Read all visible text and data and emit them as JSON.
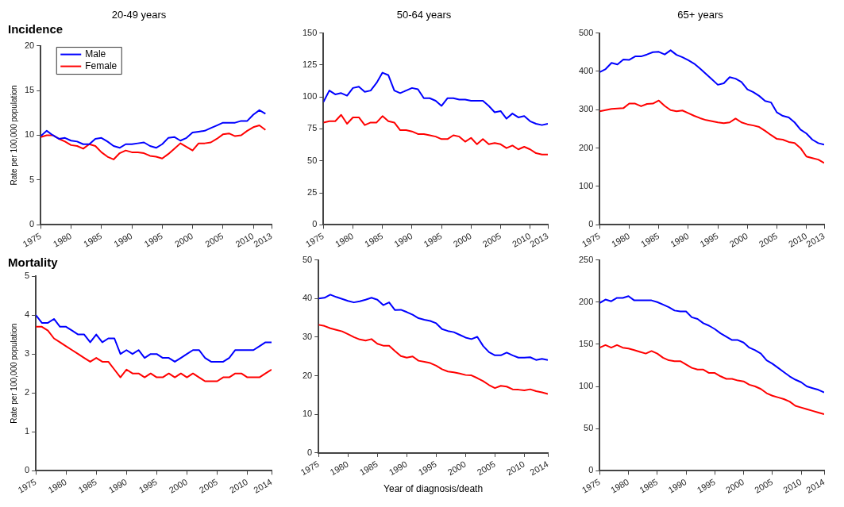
{
  "chart_data": [
    {
      "type": "line",
      "title": "20-49 years",
      "annotations": [
        "Incidence"
      ],
      "ylabel": "Rate per 100,000 population",
      "x": [
        1975,
        1976,
        1977,
        1978,
        1979,
        1980,
        1981,
        1982,
        1983,
        1984,
        1985,
        1986,
        1987,
        1988,
        1989,
        1990,
        1991,
        1992,
        1993,
        1994,
        1995,
        1996,
        1997,
        1998,
        1999,
        2000,
        2001,
        2002,
        2003,
        2004,
        2005,
        2006,
        2007,
        2008,
        2009,
        2010,
        2011,
        2012
      ],
      "xlim": [
        1975,
        2013
      ],
      "xticks": [
        1975,
        1980,
        1985,
        1990,
        1995,
        2000,
        2005,
        2010,
        2013
      ],
      "ylim": [
        0,
        20
      ],
      "yticks": [
        0,
        5,
        10,
        15,
        20
      ],
      "grid": false,
      "legend": "top left",
      "marker": "none",
      "line_style": "solid",
      "series": [
        {
          "name": "Male",
          "color": "#0000ff",
          "values": [
            9.9,
            10.5,
            10.0,
            9.6,
            9.7,
            9.4,
            9.3,
            9.0,
            9.0,
            9.6,
            9.7,
            9.3,
            8.8,
            8.6,
            9.0,
            9.0,
            9.1,
            9.2,
            8.8,
            8.6,
            9.0,
            9.7,
            9.8,
            9.4,
            9.7,
            10.3,
            10.4,
            10.5,
            10.8,
            11.1,
            11.4,
            11.4,
            11.4,
            11.6,
            11.6,
            12.3,
            12.8,
            12.4
          ]
        },
        {
          "name": "Female",
          "color": "#ff0000",
          "values": [
            9.8,
            10.0,
            10.0,
            9.6,
            9.3,
            8.9,
            8.8,
            8.5,
            9.0,
            8.8,
            8.1,
            7.6,
            7.3,
            8.0,
            8.3,
            8.1,
            8.1,
            8.0,
            7.7,
            7.6,
            7.4,
            7.9,
            8.5,
            9.1,
            8.7,
            8.3,
            9.1,
            9.1,
            9.2,
            9.6,
            10.1,
            10.2,
            9.9,
            10.0,
            10.5,
            10.9,
            11.1,
            10.6
          ]
        }
      ]
    },
    {
      "type": "line",
      "title": "50-64 years",
      "x": [
        1975,
        1976,
        1977,
        1978,
        1979,
        1980,
        1981,
        1982,
        1983,
        1984,
        1985,
        1986,
        1987,
        1988,
        1989,
        1990,
        1991,
        1992,
        1993,
        1994,
        1995,
        1996,
        1997,
        1998,
        1999,
        2000,
        2001,
        2002,
        2003,
        2004,
        2005,
        2006,
        2007,
        2008,
        2009,
        2010,
        2011,
        2012,
        2013
      ],
      "xlim": [
        1975,
        2013
      ],
      "xticks": [
        1975,
        1980,
        1985,
        1990,
        1995,
        2000,
        2005,
        2010,
        2013
      ],
      "ylim": [
        0,
        150
      ],
      "yticks": [
        0,
        25,
        50,
        75,
        100,
        125,
        150
      ],
      "grid": false,
      "marker": "none",
      "line_style": "solid",
      "series": [
        {
          "color": "#0000ff",
          "values": [
            96,
            105,
            102,
            103,
            101,
            107,
            108,
            104,
            105,
            111,
            119,
            117,
            105,
            103,
            105,
            107,
            106,
            99,
            99,
            97,
            93,
            99,
            99,
            98,
            98,
            97,
            97,
            97,
            93,
            88,
            89,
            83,
            87,
            84,
            85,
            81,
            79,
            78,
            79
          ]
        },
        {
          "color": "#ff0000",
          "values": [
            80,
            81,
            81,
            86,
            79,
            84,
            84,
            78,
            80,
            80,
            85,
            81,
            80,
            74,
            74,
            73,
            71,
            71,
            70,
            69,
            67,
            67,
            70,
            69,
            65,
            68,
            63,
            67,
            63,
            64,
            63,
            60,
            62,
            59,
            61,
            59,
            56,
            55,
            55
          ]
        }
      ]
    },
    {
      "type": "line",
      "title": "65+ years",
      "x": [
        1975,
        1976,
        1977,
        1978,
        1979,
        1980,
        1981,
        1982,
        1983,
        1984,
        1985,
        1986,
        1987,
        1988,
        1989,
        1990,
        1991,
        1992,
        1993,
        1994,
        1995,
        1996,
        1997,
        1998,
        1999,
        2000,
        2001,
        2002,
        2003,
        2004,
        2005,
        2006,
        2007,
        2008,
        2009,
        2010,
        2011,
        2012,
        2013
      ],
      "xlim": [
        1975,
        2013
      ],
      "xticks": [
        1975,
        1980,
        1985,
        1990,
        1995,
        2000,
        2005,
        2010,
        2013
      ],
      "ylim": [
        0,
        500
      ],
      "yticks": [
        0,
        100,
        200,
        300,
        400,
        500
      ],
      "grid": false,
      "marker": "none",
      "line_style": "solid",
      "series": [
        {
          "color": "#0000ff",
          "values": [
            398,
            406,
            422,
            418,
            431,
            430,
            439,
            439,
            444,
            450,
            451,
            444,
            455,
            443,
            437,
            429,
            420,
            407,
            393,
            379,
            365,
            369,
            385,
            381,
            372,
            353,
            346,
            336,
            323,
            319,
            293,
            284,
            280,
            267,
            248,
            238,
            222,
            213,
            209
          ]
        },
        {
          "color": "#ff0000",
          "values": [
            296,
            299,
            302,
            303,
            304,
            316,
            316,
            309,
            315,
            316,
            324,
            310,
            299,
            296,
            298,
            291,
            284,
            278,
            273,
            270,
            267,
            265,
            267,
            277,
            267,
            262,
            259,
            255,
            245,
            234,
            224,
            222,
            216,
            213,
            200,
            178,
            174,
            170,
            161
          ]
        }
      ]
    },
    {
      "type": "line",
      "annotations": [
        "Mortality"
      ],
      "ylabel": "Rate per 100,000 population",
      "x": [
        1975,
        1976,
        1977,
        1978,
        1979,
        1980,
        1981,
        1982,
        1983,
        1984,
        1985,
        1986,
        1987,
        1988,
        1989,
        1990,
        1991,
        1992,
        1993,
        1994,
        1995,
        1996,
        1997,
        1998,
        1999,
        2000,
        2001,
        2002,
        2003,
        2004,
        2005,
        2006,
        2007,
        2008,
        2009,
        2010,
        2011,
        2012,
        2013,
        2014
      ],
      "xlim": [
        1975,
        2014
      ],
      "xticks": [
        1975,
        1980,
        1985,
        1990,
        1995,
        2000,
        2005,
        2010,
        2014
      ],
      "ylim": [
        0,
        5
      ],
      "yticks": [
        0,
        1,
        2,
        3,
        4,
        5
      ],
      "grid": false,
      "marker": "none",
      "line_style": "solid",
      "series": [
        {
          "color": "#0000ff",
          "values": [
            4.0,
            3.8,
            3.8,
            3.9,
            3.7,
            3.7,
            3.6,
            3.5,
            3.5,
            3.3,
            3.5,
            3.3,
            3.4,
            3.4,
            3.0,
            3.1,
            3.0,
            3.1,
            2.9,
            3.0,
            3.0,
            2.9,
            2.9,
            2.8,
            2.9,
            3.0,
            3.1,
            3.1,
            2.9,
            2.8,
            2.8,
            2.8,
            2.9,
            3.1,
            3.1,
            3.1,
            3.1,
            3.2,
            3.3,
            3.3
          ]
        },
        {
          "color": "#ff0000",
          "values": [
            3.7,
            3.7,
            3.6,
            3.4,
            3.3,
            3.2,
            3.1,
            3.0,
            2.9,
            2.8,
            2.9,
            2.8,
            2.8,
            2.6,
            2.4,
            2.6,
            2.5,
            2.5,
            2.4,
            2.5,
            2.4,
            2.4,
            2.5,
            2.4,
            2.5,
            2.4,
            2.5,
            2.4,
            2.3,
            2.3,
            2.3,
            2.4,
            2.4,
            2.5,
            2.5,
            2.4,
            2.4,
            2.4,
            2.5,
            2.6
          ]
        }
      ]
    },
    {
      "type": "line",
      "xlabel": "Year of diagnosis/death",
      "x": [
        1975,
        1976,
        1977,
        1978,
        1979,
        1980,
        1981,
        1982,
        1983,
        1984,
        1985,
        1986,
        1987,
        1988,
        1989,
        1990,
        1991,
        1992,
        1993,
        1994,
        1995,
        1996,
        1997,
        1998,
        1999,
        2000,
        2001,
        2002,
        2003,
        2004,
        2005,
        2006,
        2007,
        2008,
        2009,
        2010,
        2011,
        2012,
        2013,
        2014
      ],
      "xlim": [
        1975,
        2014
      ],
      "xticks": [
        1975,
        1980,
        1985,
        1990,
        1995,
        2000,
        2005,
        2010,
        2014
      ],
      "ylim": [
        0,
        50
      ],
      "yticks": [
        0,
        10,
        20,
        30,
        40,
        50
      ],
      "grid": false,
      "marker": "none",
      "line_style": "solid",
      "series": [
        {
          "color": "#0000ff",
          "values": [
            40.0,
            40.2,
            41.0,
            40.4,
            39.9,
            39.4,
            39.0,
            39.3,
            39.7,
            40.2,
            39.7,
            38.3,
            39.0,
            37.0,
            37.1,
            36.5,
            35.8,
            34.9,
            34.5,
            34.2,
            33.6,
            32.1,
            31.6,
            31.3,
            30.6,
            29.9,
            29.5,
            30.1,
            27.7,
            26.1,
            25.3,
            25.3,
            26.0,
            25.3,
            24.7,
            24.7,
            24.8,
            24.1,
            24.4,
            24.1
          ]
        },
        {
          "color": "#ff0000",
          "values": [
            33.2,
            32.9,
            32.3,
            31.9,
            31.5,
            30.8,
            30.0,
            29.4,
            29.1,
            29.5,
            28.3,
            27.8,
            27.8,
            26.4,
            25.1,
            24.7,
            25.0,
            23.9,
            23.6,
            23.3,
            22.6,
            21.7,
            21.1,
            20.9,
            20.6,
            20.2,
            20.1,
            19.4,
            18.6,
            17.6,
            16.8,
            17.4,
            17.2,
            16.5,
            16.4,
            16.2,
            16.5,
            16.0,
            15.7,
            15.3
          ]
        }
      ]
    },
    {
      "type": "line",
      "x": [
        1975,
        1976,
        1977,
        1978,
        1979,
        1980,
        1981,
        1982,
        1983,
        1984,
        1985,
        1986,
        1987,
        1988,
        1989,
        1990,
        1991,
        1992,
        1993,
        1994,
        1995,
        1996,
        1997,
        1998,
        1999,
        2000,
        2001,
        2002,
        2003,
        2004,
        2005,
        2006,
        2007,
        2008,
        2009,
        2010,
        2011,
        2012,
        2013,
        2014
      ],
      "xlim": [
        1975,
        2014
      ],
      "xticks": [
        1975,
        1980,
        1985,
        1990,
        1995,
        2000,
        2005,
        2010,
        2014
      ],
      "ylim": [
        0,
        250
      ],
      "yticks": [
        0,
        50,
        100,
        150,
        200,
        250
      ],
      "grid": false,
      "marker": "none",
      "line_style": "solid",
      "series": [
        {
          "color": "#0000ff",
          "values": [
            199,
            203,
            201,
            205,
            205,
            207,
            202,
            202,
            202,
            202,
            200,
            197,
            194,
            190,
            189,
            189,
            182,
            180,
            175,
            172,
            168,
            163,
            159,
            155,
            155,
            152,
            146,
            143,
            139,
            131,
            127,
            122,
            117,
            112,
            108,
            105,
            100,
            98,
            96,
            93
          ]
        },
        {
          "color": "#ff0000",
          "values": [
            146,
            149,
            146,
            149,
            146,
            145,
            143,
            141,
            139,
            142,
            139,
            134,
            131,
            130,
            130,
            126,
            122,
            120,
            120,
            116,
            116,
            112,
            109,
            109,
            107,
            106,
            102,
            100,
            97,
            92,
            89,
            87,
            85,
            82,
            77,
            75,
            73,
            71,
            69,
            67
          ]
        }
      ]
    }
  ]
}
